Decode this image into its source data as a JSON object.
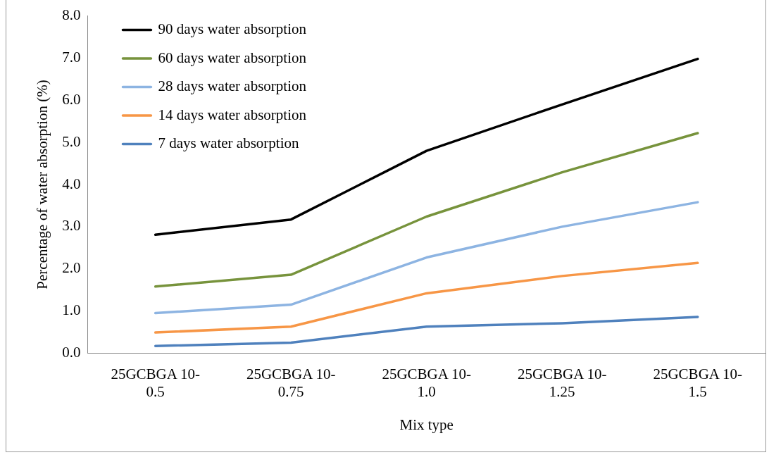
{
  "chart_data": {
    "type": "line",
    "xlabel": "Mix type",
    "ylabel": "Percentage of water absorption (%)",
    "categories": [
      "25GCBGA 10-0.5",
      "25GCBGA 10-0.75",
      "25GCBGA 10-1.0",
      "25GCBGA 10-1.25",
      "25GCBGA 10-1.5"
    ],
    "series": [
      {
        "name": "90 days water absorption",
        "color": "#000000",
        "values": [
          2.81,
          3.17,
          4.8,
          5.9,
          6.98
        ]
      },
      {
        "name": "60 days water absorption",
        "color": "#77933c",
        "values": [
          1.58,
          1.86,
          3.24,
          4.29,
          5.22
        ]
      },
      {
        "name": "28 days water absorption",
        "color": "#8db4e2",
        "values": [
          0.95,
          1.15,
          2.27,
          3.0,
          3.58
        ]
      },
      {
        "name": "14 days water absorption",
        "color": "#f79646",
        "values": [
          0.49,
          0.63,
          1.42,
          1.83,
          2.14
        ]
      },
      {
        "name": "7 days water absorption",
        "color": "#4f81bd",
        "values": [
          0.17,
          0.25,
          0.63,
          0.71,
          0.86
        ]
      }
    ],
    "ylim": [
      0,
      8
    ],
    "yticks": [
      {
        "value": 0,
        "label": "0.0"
      },
      {
        "value": 1,
        "label": "1.0"
      },
      {
        "value": 2,
        "label": "2.0"
      },
      {
        "value": 3,
        "label": "3.0"
      },
      {
        "value": 4,
        "label": "4.0"
      },
      {
        "value": 5,
        "label": "5.0"
      },
      {
        "value": 6,
        "label": "6.0"
      },
      {
        "value": 7,
        "label": "7.0"
      },
      {
        "value": 8,
        "label": "8.0"
      }
    ],
    "grid": false,
    "legend": "top left",
    "marker": "none",
    "line_style": "solid"
  }
}
